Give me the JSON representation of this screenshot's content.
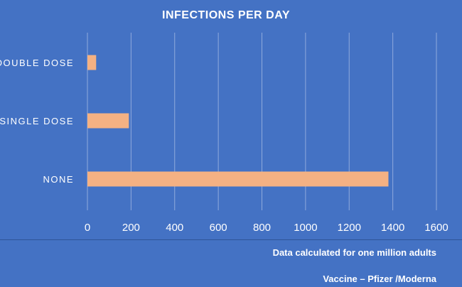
{
  "chart_data": {
    "type": "bar",
    "orientation": "horizontal",
    "title": "INFECTIONS PER DAY",
    "categories": [
      "DOUBLE DOSE",
      "SINGLE DOSE",
      "NONE"
    ],
    "values": [
      40,
      190,
      1380
    ],
    "xlim": [
      0,
      1600
    ],
    "xticks": [
      0,
      200,
      400,
      600,
      800,
      1000,
      1200,
      1400,
      1600
    ],
    "grid": "vertical",
    "legend": "none",
    "bar_color": "#F4B183",
    "grid_color": "#8FAADC"
  },
  "footer": {
    "note": "Data calculated for one million adults",
    "vaccine": "Vaccine – Pfizer /Moderna"
  },
  "colors": {
    "background": "#4472C4",
    "text": "#FFFFFF"
  }
}
